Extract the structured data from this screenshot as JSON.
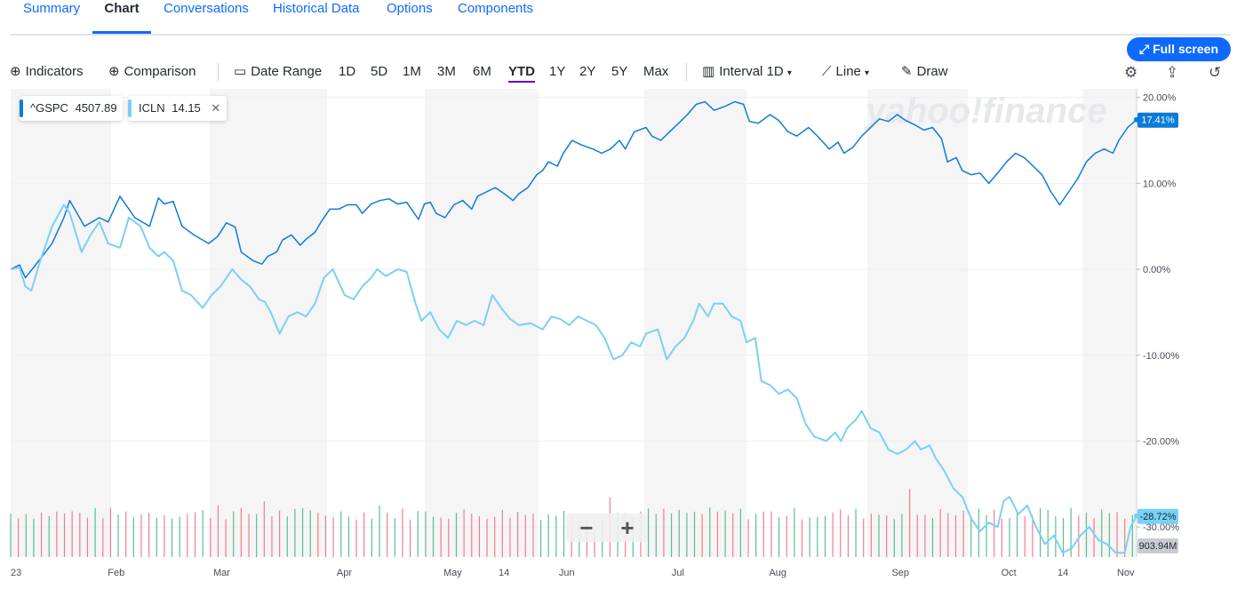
{
  "tabs": [
    {
      "label": "Summary"
    },
    {
      "label": "Chart"
    },
    {
      "label": "Conversations"
    },
    {
      "label": "Historical Data"
    },
    {
      "label": "Options"
    },
    {
      "label": "Components"
    }
  ],
  "active_tab": "Chart",
  "fullscreen_label": "Full screen",
  "toolbar": {
    "indicators": "Indicators",
    "comparison": "Comparison",
    "date_range": "Date Range",
    "ranges": [
      "1D",
      "5D",
      "1M",
      "3M",
      "6M",
      "YTD",
      "1Y",
      "2Y",
      "5Y",
      "Max"
    ],
    "selected_range": "YTD",
    "interval_label": "Interval",
    "interval_value": "1D",
    "charttype": "Line",
    "draw": "Draw"
  },
  "legend": [
    {
      "symbol": "^GSPC",
      "value": "4507.89",
      "color": "#0b7bd8"
    },
    {
      "symbol": "ICLN",
      "value": "14.15",
      "color": "#7ad0f5"
    }
  ],
  "watermark": "yahoo!finance",
  "colors": {
    "primary": "#0f69ff",
    "gspc": "#0b7bd8",
    "icln": "#7ad0f5",
    "vol_up": "#3fb37f",
    "vol_down": "#f0677a"
  },
  "chart_data": {
    "type": "line",
    "y_unit": "%",
    "ylim": [
      -33.5,
      21
    ],
    "y_ticks": [
      "20.00%",
      "10.00%",
      "0.00%",
      "-10.00%",
      "-20.00%",
      "-30.00%"
    ],
    "x_ticks": [
      "23",
      "Feb",
      "Mar",
      "Apr",
      "May",
      "14",
      "Jun",
      "Jul",
      "Aug",
      "Sep",
      "Oct",
      "14",
      "Nov"
    ],
    "last_labels": {
      "gspc": "17.41%",
      "icln": "-28.72%",
      "volume": "903.94M"
    },
    "series": [
      {
        "name": "^GSPC",
        "values": [
          [
            0,
            0
          ],
          [
            3,
            0.5
          ],
          [
            5,
            -1
          ],
          [
            10,
            1.2
          ],
          [
            14,
            3
          ],
          [
            18,
            6
          ],
          [
            20,
            8
          ],
          [
            25,
            5
          ],
          [
            30,
            6
          ],
          [
            33,
            5.5
          ],
          [
            37,
            8.5
          ],
          [
            42,
            6
          ],
          [
            47,
            5
          ],
          [
            50,
            8.3
          ],
          [
            52,
            7.6
          ],
          [
            55,
            7.9
          ],
          [
            58,
            5
          ],
          [
            62,
            4
          ],
          [
            67,
            3
          ],
          [
            70,
            3.8
          ],
          [
            73,
            5.4
          ],
          [
            76,
            4.9
          ],
          [
            78,
            2
          ],
          [
            82,
            1
          ],
          [
            85,
            0.6
          ],
          [
            87,
            1.5
          ],
          [
            90,
            2
          ],
          [
            92,
            3.4
          ],
          [
            95,
            4
          ],
          [
            98,
            2.8
          ],
          [
            100,
            3.5
          ],
          [
            103,
            4.3
          ],
          [
            105,
            5.5
          ],
          [
            108,
            7
          ],
          [
            111,
            7
          ],
          [
            114,
            7.5
          ],
          [
            117,
            7.5
          ],
          [
            119,
            6.5
          ],
          [
            122,
            7.6
          ],
          [
            125,
            8
          ],
          [
            128,
            8.2
          ],
          [
            131,
            7.6
          ],
          [
            134,
            7.8
          ],
          [
            136,
            6.8
          ],
          [
            138,
            5.8
          ],
          [
            140,
            7.6
          ],
          [
            142,
            7.8
          ],
          [
            144,
            6.5
          ],
          [
            147,
            6
          ],
          [
            150,
            7.5
          ],
          [
            153,
            8
          ],
          [
            156,
            7
          ],
          [
            158,
            8.5
          ],
          [
            161,
            9
          ],
          [
            164,
            9.5
          ],
          [
            167,
            8.8
          ],
          [
            170,
            8
          ],
          [
            172,
            8.8
          ],
          [
            175,
            9.5
          ],
          [
            178,
            11
          ],
          [
            180,
            11.5
          ],
          [
            182,
            12.5
          ],
          [
            185,
            12
          ],
          [
            187,
            13.5
          ],
          [
            190,
            15
          ],
          [
            193,
            14.5
          ],
          [
            197,
            14
          ],
          [
            200,
            13.5
          ],
          [
            203,
            14
          ],
          [
            206,
            15
          ],
          [
            208,
            14
          ],
          [
            211,
            16
          ],
          [
            215,
            16.5
          ],
          [
            217,
            15.5
          ],
          [
            220,
            15
          ],
          [
            223,
            16
          ],
          [
            226,
            17
          ],
          [
            229,
            18
          ],
          [
            232,
            19.2
          ],
          [
            235,
            19.5
          ],
          [
            238,
            18.5
          ],
          [
            242,
            19
          ],
          [
            245,
            19.5
          ],
          [
            248,
            19.2
          ],
          [
            250,
            17.2
          ],
          [
            253,
            17
          ],
          [
            257,
            18
          ],
          [
            260,
            17.3
          ],
          [
            263,
            16
          ],
          [
            266,
            15.5
          ],
          [
            270,
            16.5
          ],
          [
            273,
            15.5
          ],
          [
            277,
            14
          ],
          [
            280,
            14.8
          ],
          [
            282,
            13.5
          ],
          [
            285,
            14.2
          ],
          [
            288,
            15.5
          ],
          [
            291,
            16.5
          ],
          [
            294,
            17.5
          ],
          [
            297,
            17.2
          ],
          [
            300,
            18
          ],
          [
            303,
            17.3
          ],
          [
            306,
            16.8
          ],
          [
            309,
            16.2
          ],
          [
            312,
            16.5
          ],
          [
            315,
            15.2
          ],
          [
            317,
            12.5
          ],
          [
            320,
            13
          ],
          [
            322,
            11.5
          ],
          [
            325,
            11
          ],
          [
            328,
            11.2
          ],
          [
            331,
            10
          ],
          [
            334,
            11.2
          ],
          [
            337,
            12.5
          ],
          [
            340,
            13.5
          ],
          [
            343,
            13
          ],
          [
            346,
            12
          ],
          [
            349,
            11
          ],
          [
            352,
            9
          ],
          [
            355,
            7.5
          ],
          [
            358,
            9
          ],
          [
            361,
            10.5
          ],
          [
            364,
            12.5
          ],
          [
            367,
            13.5
          ],
          [
            370,
            14
          ],
          [
            373,
            13.5
          ],
          [
            375,
            15
          ],
          [
            378,
            16.5
          ],
          [
            381,
            17.41
          ]
        ]
      },
      {
        "name": "ICLN",
        "values": [
          [
            0,
            0
          ],
          [
            3,
            0.2
          ],
          [
            5,
            -2
          ],
          [
            7,
            -2.5
          ],
          [
            10,
            1
          ],
          [
            14,
            5
          ],
          [
            18,
            7.5
          ],
          [
            20,
            6.5
          ],
          [
            24,
            2
          ],
          [
            27,
            4
          ],
          [
            30,
            5.5
          ],
          [
            33,
            3
          ],
          [
            37,
            2.5
          ],
          [
            40,
            6
          ],
          [
            44,
            5
          ],
          [
            47,
            2.5
          ],
          [
            50,
            1.5
          ],
          [
            52,
            2
          ],
          [
            55,
            1
          ],
          [
            58,
            -2.5
          ],
          [
            61,
            -3
          ],
          [
            65,
            -4.5
          ],
          [
            68,
            -3
          ],
          [
            71,
            -2
          ],
          [
            75,
            0
          ],
          [
            78,
            -1.2
          ],
          [
            81,
            -2
          ],
          [
            84,
            -3.5
          ],
          [
            86,
            -3.8
          ],
          [
            88,
            -5
          ],
          [
            91,
            -7.5
          ],
          [
            94,
            -5.5
          ],
          [
            97,
            -5
          ],
          [
            100,
            -5.5
          ],
          [
            103,
            -4
          ],
          [
            106,
            -1
          ],
          [
            109,
            0
          ],
          [
            113,
            -3
          ],
          [
            116,
            -3.5
          ],
          [
            119,
            -2
          ],
          [
            122,
            -1
          ],
          [
            124,
            0
          ],
          [
            127,
            -0.8
          ],
          [
            131,
            0
          ],
          [
            134,
            -0.3
          ],
          [
            137,
            -4
          ],
          [
            139,
            -6
          ],
          [
            142,
            -5
          ],
          [
            145,
            -7
          ],
          [
            148,
            -8
          ],
          [
            151,
            -6
          ],
          [
            154,
            -6.5
          ],
          [
            157,
            -6
          ],
          [
            160,
            -6.5
          ],
          [
            163,
            -3
          ],
          [
            166,
            -4.5
          ],
          [
            169,
            -5.8
          ],
          [
            172,
            -6.5
          ],
          [
            176,
            -6.3
          ],
          [
            180,
            -7
          ],
          [
            183,
            -5.5
          ],
          [
            186,
            -5.8
          ],
          [
            189,
            -6.5
          ],
          [
            192,
            -5.5
          ],
          [
            195,
            -6
          ],
          [
            198,
            -6.5
          ],
          [
            201,
            -8
          ],
          [
            204,
            -10.5
          ],
          [
            207,
            -10
          ],
          [
            210,
            -8.5
          ],
          [
            213,
            -9
          ],
          [
            215,
            -7.5
          ],
          [
            219,
            -7
          ],
          [
            222,
            -10.5
          ],
          [
            225,
            -9
          ],
          [
            228,
            -8
          ],
          [
            231,
            -6
          ],
          [
            233,
            -4
          ],
          [
            236,
            -5.5
          ],
          [
            238,
            -4
          ],
          [
            241,
            -4
          ],
          [
            244,
            -5.5
          ],
          [
            247,
            -6
          ],
          [
            249,
            -8.5
          ],
          [
            252,
            -8
          ],
          [
            254,
            -13
          ],
          [
            257,
            -13.5
          ],
          [
            260,
            -14.5
          ],
          [
            263,
            -14
          ],
          [
            266,
            -15
          ],
          [
            269,
            -18
          ],
          [
            272,
            -19.5
          ],
          [
            276,
            -20
          ],
          [
            279,
            -19
          ],
          [
            281,
            -20
          ],
          [
            283,
            -18.5
          ],
          [
            286,
            -17.5
          ],
          [
            288,
            -16.5
          ],
          [
            291,
            -18.5
          ],
          [
            294,
            -19
          ],
          [
            297,
            -21
          ],
          [
            300,
            -21.5
          ],
          [
            303,
            -21
          ],
          [
            306,
            -20
          ],
          [
            308,
            -21
          ],
          [
            311,
            -20.5
          ],
          [
            313,
            -22
          ],
          [
            316,
            -23.5
          ],
          [
            319,
            -25.5
          ],
          [
            322,
            -26.5
          ],
          [
            325,
            -29
          ],
          [
            328,
            -30.5
          ],
          [
            331,
            -29.5
          ],
          [
            334,
            -30
          ],
          [
            336,
            -27
          ],
          [
            338,
            -26.5
          ],
          [
            341,
            -28.5
          ],
          [
            344,
            -27.5
          ],
          [
            347,
            -30
          ],
          [
            350,
            -32
          ],
          [
            353,
            -31
          ],
          [
            356,
            -33
          ],
          [
            359,
            -32.5
          ],
          [
            362,
            -31
          ],
          [
            365,
            -30
          ],
          [
            368,
            -31.5
          ],
          [
            371,
            -32
          ],
          [
            374,
            -33
          ],
          [
            377,
            -33
          ],
          [
            379,
            -30
          ],
          [
            381,
            -28.72
          ]
        ]
      }
    ]
  }
}
